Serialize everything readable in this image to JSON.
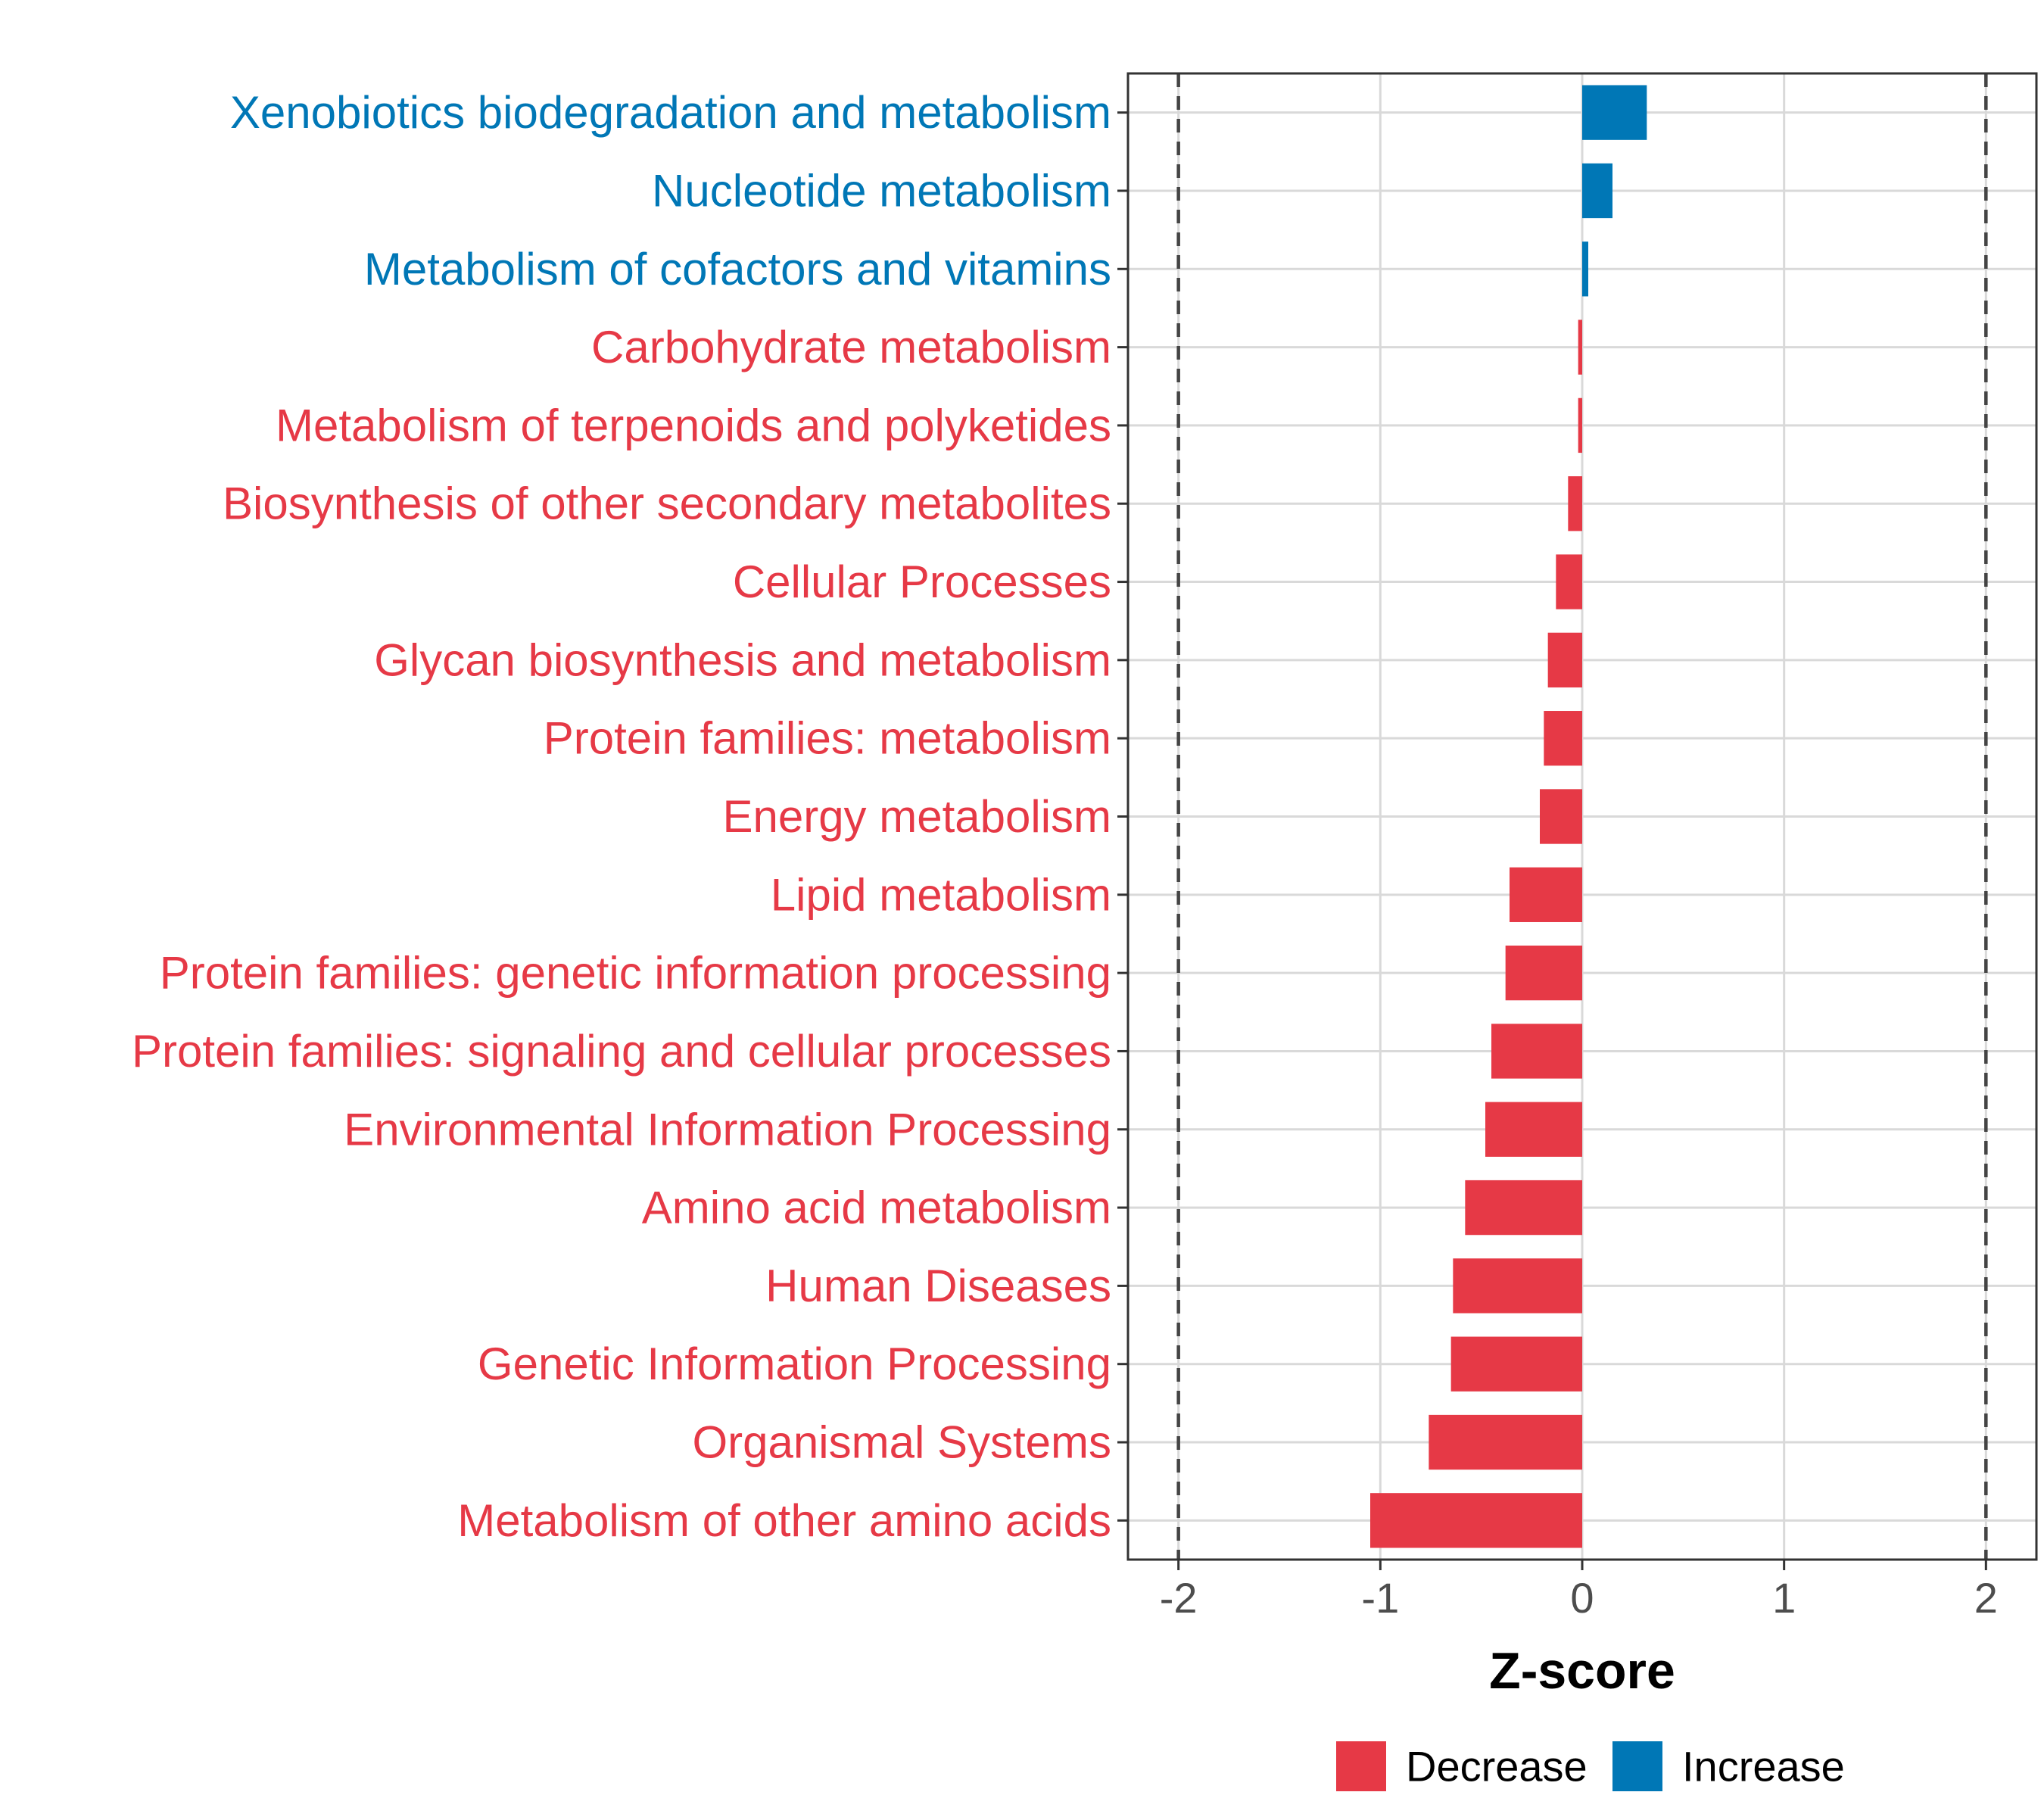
{
  "chart_data": {
    "type": "bar",
    "orientation": "horizontal",
    "title": "",
    "xlabel": "Z-score",
    "ylabel": "",
    "xlim": [
      -2.25,
      2.25
    ],
    "x_ticks": [
      "-2",
      "-1",
      "0",
      "1",
      "2"
    ],
    "x_tick_values": [
      -2,
      -1,
      0,
      1,
      2
    ],
    "threshold_lines": [
      -2,
      2
    ],
    "grid": true,
    "legend_position": "bottom",
    "colors": {
      "Decrease": "#e63946",
      "Increase": "#0077b6"
    },
    "legend": [
      "Decrease",
      "Increase"
    ],
    "categories": [
      "Xenobiotics biodegradation and metabolism",
      "Nucleotide metabolism",
      "Metabolism of cofactors and vitamins",
      "Carbohydrate metabolism",
      "Metabolism of terpenoids and polyketides",
      "Biosynthesis of other secondary metabolites",
      "Cellular Processes",
      "Glycan biosynthesis and metabolism",
      "Protein families: metabolism",
      "Energy metabolism",
      "Lipid metabolism",
      "Protein families: genetic information processing",
      "Protein families: signaling and cellular processes",
      "Environmental Information Processing",
      "Amino acid metabolism",
      "Human Diseases",
      "Genetic Information Processing",
      "Organismal Systems",
      "Metabolism of other amino acids"
    ],
    "values": [
      0.32,
      0.15,
      0.03,
      -0.02,
      -0.02,
      -0.07,
      -0.13,
      -0.17,
      -0.19,
      -0.21,
      -0.36,
      -0.38,
      -0.45,
      -0.48,
      -0.58,
      -0.64,
      -0.65,
      -0.76,
      -1.05
    ],
    "groups": [
      "Increase",
      "Increase",
      "Increase",
      "Decrease",
      "Decrease",
      "Decrease",
      "Decrease",
      "Decrease",
      "Decrease",
      "Decrease",
      "Decrease",
      "Decrease",
      "Decrease",
      "Decrease",
      "Decrease",
      "Decrease",
      "Decrease",
      "Decrease",
      "Decrease"
    ]
  }
}
